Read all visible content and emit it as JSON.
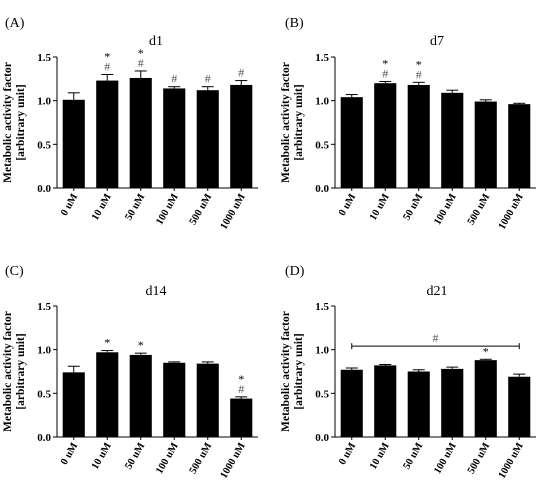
{
  "chart_data": [
    {
      "type": "bar",
      "panel_label": "(A)",
      "title": "d1",
      "ylabel": [
        "Metabolic activity factor",
        "[arbitrary unit]"
      ],
      "ylim": [
        0,
        1.5
      ],
      "yticks": [
        "0.0",
        "0.5",
        "1.0",
        "1.5"
      ],
      "categories": [
        "0 uM",
        "10 uM",
        "50 uM",
        "100 uM",
        "500 uM",
        "1000 uM"
      ],
      "values": [
        1.01,
        1.23,
        1.26,
        1.14,
        1.12,
        1.18
      ],
      "errors": [
        0.08,
        0.07,
        0.08,
        0.02,
        0.04,
        0.05
      ],
      "annotations": [
        [],
        [
          "*",
          "#"
        ],
        [
          "*",
          "#"
        ],
        [
          "#"
        ],
        [
          "#"
        ],
        [
          "#"
        ]
      ],
      "bracket": null
    },
    {
      "type": "bar",
      "panel_label": "(B)",
      "title": "d7",
      "ylabel": [
        "Metabolic activity factor",
        "[arbitrary unit]"
      ],
      "ylim": [
        0,
        1.5
      ],
      "yticks": [
        "0.0",
        "0.5",
        "1.0",
        "1.5"
      ],
      "categories": [
        "0 uM",
        "10 uM",
        "50 uM",
        "100 uM",
        "500 uM",
        "1000 uM"
      ],
      "values": [
        1.04,
        1.2,
        1.18,
        1.09,
        0.99,
        0.96
      ],
      "errors": [
        0.03,
        0.02,
        0.03,
        0.03,
        0.02,
        0.01
      ],
      "annotations": [
        [],
        [
          "*",
          "#"
        ],
        [
          "*",
          "#"
        ],
        [],
        [],
        []
      ],
      "bracket": null
    },
    {
      "type": "bar",
      "panel_label": "(C)",
      "title": "d14",
      "ylabel": [
        "Metabolic activity factor",
        "[arbitrary unit]"
      ],
      "ylim": [
        0,
        1.5
      ],
      "yticks": [
        "0.0",
        "0.5",
        "1.0",
        "1.5"
      ],
      "categories": [
        "0 uM",
        "10 uM",
        "50 uM",
        "100 uM",
        "500 uM",
        "1000 uM"
      ],
      "values": [
        0.74,
        0.97,
        0.94,
        0.85,
        0.84,
        0.44
      ],
      "errors": [
        0.07,
        0.02,
        0.02,
        0.01,
        0.02,
        0.02
      ],
      "annotations": [
        [],
        [
          "*"
        ],
        [
          "*"
        ],
        [],
        [],
        [
          "*",
          "#"
        ]
      ],
      "bracket": null
    },
    {
      "type": "bar",
      "panel_label": "(D)",
      "title": "d21",
      "ylabel": [
        "Metabolic activity factor",
        "[arbitrary unit]"
      ],
      "ylim": [
        0,
        1.5
      ],
      "yticks": [
        "0.0",
        "0.5",
        "1.0",
        "1.5"
      ],
      "categories": [
        "0 uM",
        "10 uM",
        "50 uM",
        "100 uM",
        "500 uM",
        "1000 uM"
      ],
      "values": [
        0.77,
        0.82,
        0.75,
        0.78,
        0.88,
        0.69
      ],
      "errors": [
        0.02,
        0.01,
        0.02,
        0.02,
        0.01,
        0.03
      ],
      "annotations": [
        [],
        [],
        [],
        [],
        [
          "*"
        ],
        []
      ],
      "bracket": {
        "symbol": "#",
        "y": 1.04,
        "from_category": 0,
        "to_category": 5
      }
    }
  ]
}
